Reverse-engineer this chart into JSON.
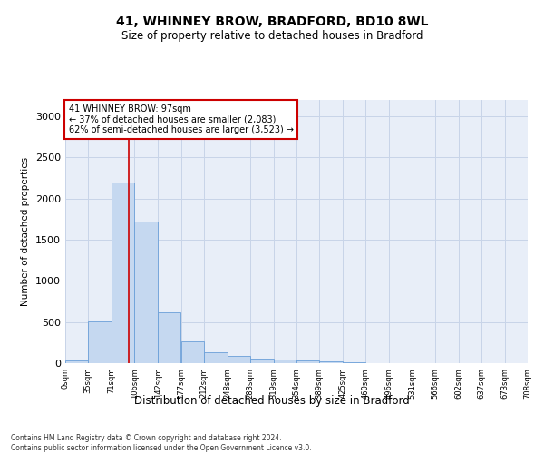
{
  "title": "41, WHINNEY BROW, BRADFORD, BD10 8WL",
  "subtitle": "Size of property relative to detached houses in Bradford",
  "xlabel": "Distribution of detached houses by size in Bradford",
  "ylabel": "Number of detached properties",
  "annotation_line1": "41 WHINNEY BROW: 97sqm",
  "annotation_line2": "← 37% of detached houses are smaller (2,083)",
  "annotation_line3": "62% of semi-detached houses are larger (3,523) →",
  "bin_labels": [
    "0sqm",
    "35sqm",
    "71sqm",
    "106sqm",
    "142sqm",
    "177sqm",
    "212sqm",
    "248sqm",
    "283sqm",
    "319sqm",
    "354sqm",
    "389sqm",
    "425sqm",
    "460sqm",
    "496sqm",
    "531sqm",
    "566sqm",
    "602sqm",
    "637sqm",
    "673sqm",
    "708sqm"
  ],
  "bin_edges": [
    0,
    35,
    71,
    106,
    142,
    177,
    212,
    248,
    283,
    319,
    354,
    389,
    425,
    460,
    496,
    531,
    566,
    602,
    637,
    673,
    708
  ],
  "bar_values": [
    30,
    510,
    2200,
    1720,
    620,
    270,
    135,
    90,
    55,
    40,
    35,
    20,
    10,
    5,
    2,
    1,
    1,
    0,
    0,
    0
  ],
  "bar_color": "#c5d8f0",
  "bar_edge_color": "#6a9fd8",
  "vline_color": "#cc0000",
  "vline_x": 97,
  "annotation_box_color": "#ffffff",
  "annotation_box_edge": "#cc0000",
  "grid_color": "#c8d4e8",
  "background_color": "#e8eef8",
  "ylim": [
    0,
    3200
  ],
  "yticks": [
    0,
    500,
    1000,
    1500,
    2000,
    2500,
    3000
  ],
  "footer1": "Contains HM Land Registry data © Crown copyright and database right 2024.",
  "footer2": "Contains public sector information licensed under the Open Government Licence v3.0."
}
